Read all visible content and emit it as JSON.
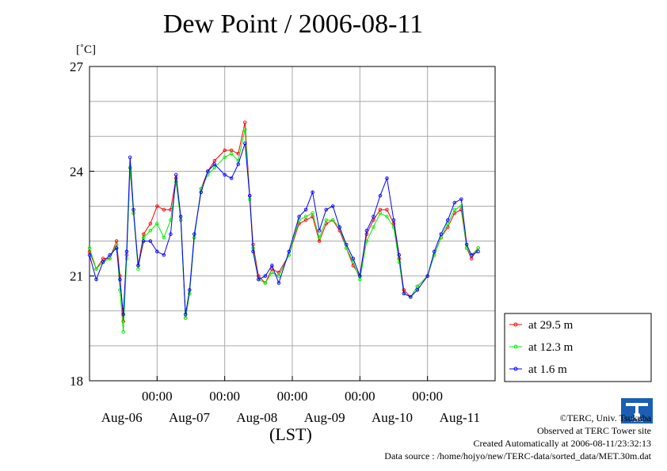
{
  "chart_data": {
    "type": "line",
    "title": "Dew Point / 2006-08-11",
    "ylabel": "[˚C]",
    "xlabel": "(LST)",
    "ylim": [
      18,
      27
    ],
    "yticks": [
      18,
      21,
      24,
      27
    ],
    "xlim_days": [
      0,
      6
    ],
    "x_ticks": [
      {
        "day": 1,
        "time": "00:00"
      },
      {
        "day": 2,
        "time": "00:00"
      },
      {
        "day": 3,
        "time": "00:00"
      },
      {
        "day": 4,
        "time": "00:00"
      },
      {
        "day": 5,
        "time": "00:00"
      }
    ],
    "x_day_labels": [
      {
        "day": 0.5,
        "label": "Aug-06"
      },
      {
        "day": 1.5,
        "label": "Aug-07"
      },
      {
        "day": 2.5,
        "label": "Aug-08"
      },
      {
        "day": 3.5,
        "label": "Aug-09"
      },
      {
        "day": 4.5,
        "label": "Aug-10"
      },
      {
        "day": 5.5,
        "label": "Aug-11"
      }
    ],
    "grid": true,
    "legend_position": "right",
    "series": [
      {
        "name": "at 29.5 m",
        "color": "#ff0000",
        "points": [
          [
            0.0,
            21.7
          ],
          [
            0.1,
            21.2
          ],
          [
            0.2,
            21.5
          ],
          [
            0.3,
            21.5
          ],
          [
            0.4,
            22.0
          ],
          [
            0.45,
            21.0
          ],
          [
            0.5,
            19.7
          ],
          [
            0.55,
            21.6
          ],
          [
            0.6,
            24.1
          ],
          [
            0.65,
            22.8
          ],
          [
            0.72,
            21.3
          ],
          [
            0.8,
            22.2
          ],
          [
            0.9,
            22.5
          ],
          [
            1.0,
            23.0
          ],
          [
            1.1,
            22.9
          ],
          [
            1.2,
            22.9
          ],
          [
            1.28,
            23.8
          ],
          [
            1.35,
            22.6
          ],
          [
            1.42,
            19.8
          ],
          [
            1.48,
            20.5
          ],
          [
            1.55,
            22.1
          ],
          [
            1.65,
            23.5
          ],
          [
            1.75,
            24.0
          ],
          [
            1.85,
            24.3
          ],
          [
            2.0,
            24.6
          ],
          [
            2.1,
            24.6
          ],
          [
            2.2,
            24.5
          ],
          [
            2.3,
            25.4
          ],
          [
            2.37,
            23.3
          ],
          [
            2.42,
            21.9
          ],
          [
            2.5,
            21.0
          ],
          [
            2.6,
            20.8
          ],
          [
            2.7,
            21.2
          ],
          [
            2.8,
            21.1
          ],
          [
            2.95,
            21.6
          ],
          [
            3.1,
            22.5
          ],
          [
            3.2,
            22.6
          ],
          [
            3.3,
            22.7
          ],
          [
            3.4,
            22.0
          ],
          [
            3.5,
            22.5
          ],
          [
            3.6,
            22.6
          ],
          [
            3.7,
            22.3
          ],
          [
            3.8,
            21.8
          ],
          [
            3.9,
            21.3
          ],
          [
            4.0,
            21.0
          ],
          [
            4.1,
            22.2
          ],
          [
            4.2,
            22.6
          ],
          [
            4.3,
            22.9
          ],
          [
            4.4,
            22.9
          ],
          [
            4.5,
            22.5
          ],
          [
            4.58,
            21.5
          ],
          [
            4.65,
            20.6
          ],
          [
            4.75,
            20.4
          ],
          [
            4.85,
            20.7
          ],
          [
            5.0,
            21.0
          ],
          [
            5.1,
            21.6
          ],
          [
            5.2,
            22.1
          ],
          [
            5.3,
            22.4
          ],
          [
            5.4,
            22.8
          ],
          [
            5.5,
            22.9
          ],
          [
            5.58,
            21.8
          ],
          [
            5.65,
            21.5
          ],
          [
            5.75,
            21.8
          ]
        ]
      },
      {
        "name": "at 12.3 m",
        "color": "#00ee00",
        "points": [
          [
            0.0,
            21.8
          ],
          [
            0.1,
            21.2
          ],
          [
            0.2,
            21.4
          ],
          [
            0.3,
            21.5
          ],
          [
            0.4,
            21.9
          ],
          [
            0.45,
            20.6
          ],
          [
            0.5,
            19.4
          ],
          [
            0.55,
            21.5
          ],
          [
            0.6,
            24.1
          ],
          [
            0.65,
            22.8
          ],
          [
            0.72,
            21.2
          ],
          [
            0.8,
            22.1
          ],
          [
            0.9,
            22.3
          ],
          [
            1.0,
            22.5
          ],
          [
            1.1,
            22.1
          ],
          [
            1.2,
            22.6
          ],
          [
            1.28,
            23.7
          ],
          [
            1.35,
            22.6
          ],
          [
            1.42,
            19.8
          ],
          [
            1.48,
            20.5
          ],
          [
            1.55,
            22.1
          ],
          [
            1.65,
            23.5
          ],
          [
            1.75,
            23.9
          ],
          [
            1.85,
            24.1
          ],
          [
            2.0,
            24.4
          ],
          [
            2.1,
            24.5
          ],
          [
            2.2,
            24.3
          ],
          [
            2.3,
            25.2
          ],
          [
            2.37,
            23.2
          ],
          [
            2.42,
            21.8
          ],
          [
            2.5,
            20.9
          ],
          [
            2.6,
            20.8
          ],
          [
            2.7,
            21.1
          ],
          [
            2.8,
            21.0
          ],
          [
            2.95,
            21.6
          ],
          [
            3.1,
            22.6
          ],
          [
            3.2,
            22.7
          ],
          [
            3.3,
            22.8
          ],
          [
            3.4,
            22.1
          ],
          [
            3.5,
            22.6
          ],
          [
            3.6,
            22.6
          ],
          [
            3.7,
            22.4
          ],
          [
            3.8,
            21.8
          ],
          [
            3.9,
            21.4
          ],
          [
            4.0,
            20.9
          ],
          [
            4.1,
            22.0
          ],
          [
            4.2,
            22.4
          ],
          [
            4.3,
            22.8
          ],
          [
            4.4,
            22.7
          ],
          [
            4.5,
            22.4
          ],
          [
            4.58,
            21.4
          ],
          [
            4.65,
            20.5
          ],
          [
            4.75,
            20.4
          ],
          [
            4.85,
            20.7
          ],
          [
            5.0,
            21.0
          ],
          [
            5.1,
            21.6
          ],
          [
            5.2,
            22.1
          ],
          [
            5.3,
            22.5
          ],
          [
            5.4,
            22.9
          ],
          [
            5.5,
            23.0
          ],
          [
            5.58,
            21.8
          ],
          [
            5.65,
            21.6
          ],
          [
            5.75,
            21.8
          ]
        ]
      },
      {
        "name": "at 1.6 m",
        "color": "#0000ff",
        "points": [
          [
            0.0,
            21.6
          ],
          [
            0.1,
            20.9
          ],
          [
            0.2,
            21.4
          ],
          [
            0.3,
            21.6
          ],
          [
            0.4,
            21.8
          ],
          [
            0.45,
            20.9
          ],
          [
            0.5,
            19.9
          ],
          [
            0.55,
            21.7
          ],
          [
            0.6,
            24.4
          ],
          [
            0.65,
            22.9
          ],
          [
            0.72,
            21.3
          ],
          [
            0.8,
            22.0
          ],
          [
            0.9,
            22.0
          ],
          [
            1.0,
            21.7
          ],
          [
            1.1,
            21.6
          ],
          [
            1.2,
            22.2
          ],
          [
            1.28,
            23.9
          ],
          [
            1.35,
            22.7
          ],
          [
            1.42,
            19.9
          ],
          [
            1.48,
            20.6
          ],
          [
            1.55,
            22.2
          ],
          [
            1.65,
            23.4
          ],
          [
            1.75,
            24.0
          ],
          [
            1.85,
            24.2
          ],
          [
            2.0,
            23.9
          ],
          [
            2.1,
            23.8
          ],
          [
            2.2,
            24.2
          ],
          [
            2.3,
            24.8
          ],
          [
            2.37,
            23.3
          ],
          [
            2.42,
            21.7
          ],
          [
            2.5,
            20.9
          ],
          [
            2.6,
            21.0
          ],
          [
            2.7,
            21.3
          ],
          [
            2.8,
            20.8
          ],
          [
            2.95,
            21.7
          ],
          [
            3.1,
            22.7
          ],
          [
            3.2,
            22.9
          ],
          [
            3.3,
            23.4
          ],
          [
            3.4,
            22.3
          ],
          [
            3.5,
            22.9
          ],
          [
            3.6,
            23.0
          ],
          [
            3.7,
            22.4
          ],
          [
            3.8,
            21.9
          ],
          [
            3.9,
            21.5
          ],
          [
            4.0,
            21.0
          ],
          [
            4.1,
            22.3
          ],
          [
            4.2,
            22.7
          ],
          [
            4.3,
            23.3
          ],
          [
            4.4,
            23.8
          ],
          [
            4.5,
            22.6
          ],
          [
            4.58,
            21.6
          ],
          [
            4.65,
            20.5
          ],
          [
            4.75,
            20.4
          ],
          [
            4.85,
            20.6
          ],
          [
            5.0,
            21.0
          ],
          [
            5.1,
            21.7
          ],
          [
            5.2,
            22.2
          ],
          [
            5.3,
            22.6
          ],
          [
            5.4,
            23.1
          ],
          [
            5.5,
            23.2
          ],
          [
            5.58,
            21.9
          ],
          [
            5.65,
            21.6
          ],
          [
            5.75,
            21.7
          ]
        ]
      }
    ]
  },
  "credits": {
    "copyright": "©TERC, Univ. Tsukuba",
    "observed": "Observed at TERC Tower site",
    "created": "Created Automatically at 2006-08-11/23:32:13",
    "source": "Data source : /home/hojyo/new/TERC-data/sorted_data/MET.30m.dat"
  },
  "logo_text": "TERC"
}
